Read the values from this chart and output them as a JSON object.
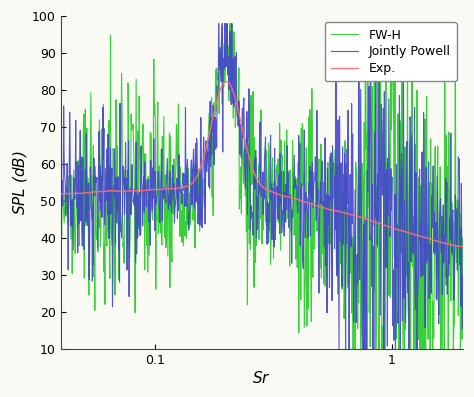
{
  "title": "",
  "xlabel": "$Sr$",
  "ylabel": "$SPL$ (dB)",
  "xlim": [
    0.04,
    2.0
  ],
  "ylim": [
    10,
    100
  ],
  "yticks": [
    10,
    20,
    30,
    40,
    50,
    60,
    70,
    80,
    90,
    100
  ],
  "xticks": [
    0.1,
    1.0
  ],
  "xticklabels": [
    "0.1",
    "1"
  ],
  "line_colors": {
    "exp": "#FF7070",
    "fwh": "#22CC22",
    "jp": "#4444CC"
  },
  "legend_labels": [
    "Exp.",
    "FW-H",
    "Jointly Powell"
  ],
  "line_widths": {
    "exp": 1.0,
    "fwh": 0.8,
    "jp": 0.8
  },
  "bg_color": "#FAFAF5",
  "seed": 7
}
